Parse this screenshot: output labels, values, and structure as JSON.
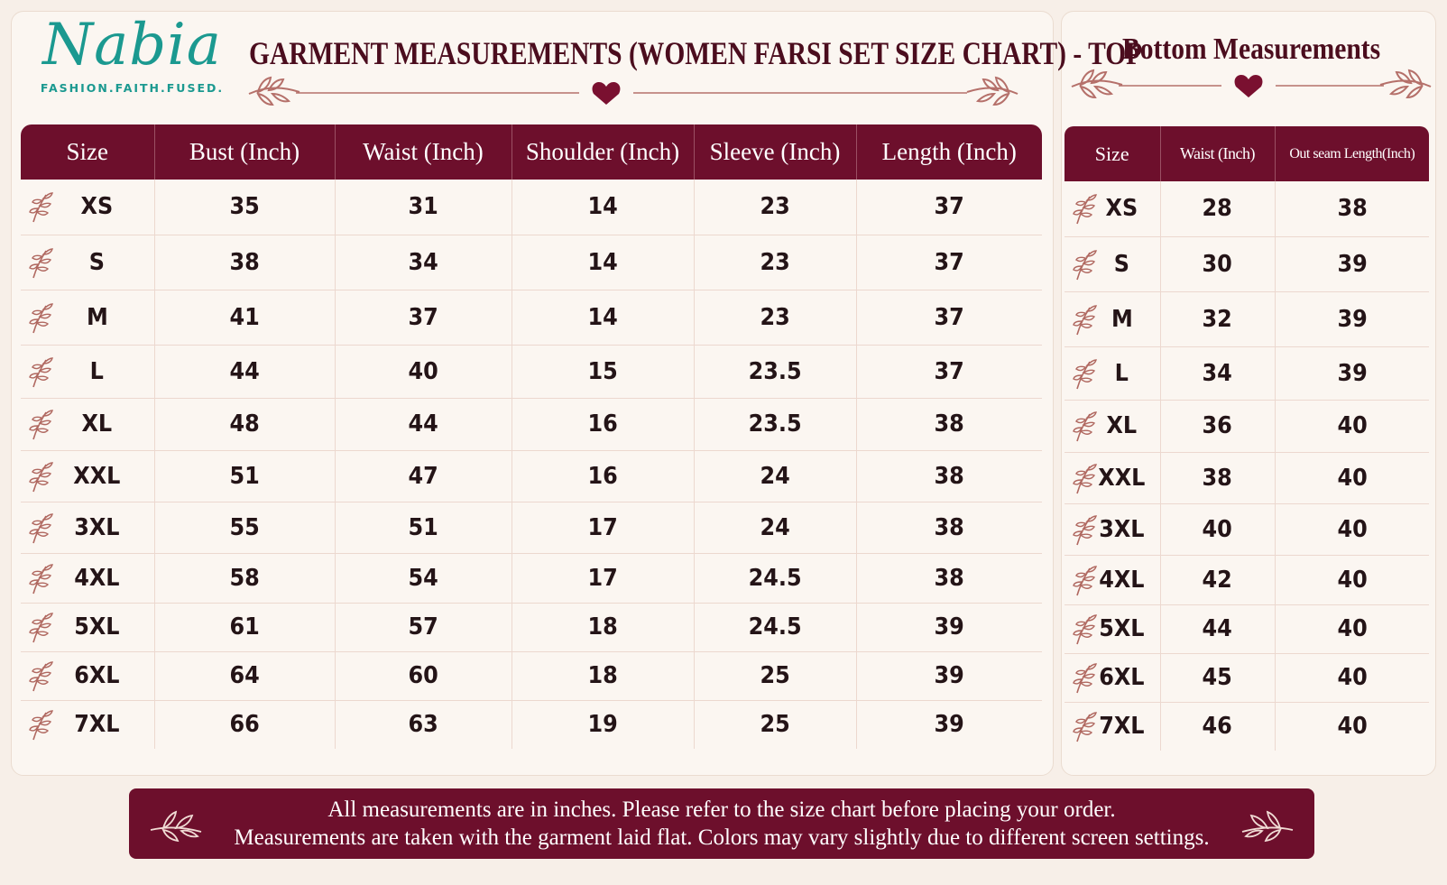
{
  "brand": {
    "name": "Nabia",
    "tagline": "FASHION.FAITH.FUSED.",
    "colors": {
      "teal": "#1b9990",
      "maroon": "#6d0f2c",
      "title": "#4b0d1e"
    }
  },
  "top_chart": {
    "title": "GARMENT MEASUREMENTS (WOMEN FARSI SET SIZE CHART) - TOP",
    "headers": [
      "Size",
      "Bust (Inch)",
      "Waist (Inch)",
      "Shoulder (Inch)",
      "Sleeve (Inch)",
      "Length (Inch)"
    ],
    "rows": [
      [
        "XS",
        "35",
        "31",
        "14",
        "23",
        "37"
      ],
      [
        "S",
        "38",
        "34",
        "14",
        "23",
        "37"
      ],
      [
        "M",
        "41",
        "37",
        "14",
        "23",
        "37"
      ],
      [
        "L",
        "44",
        "40",
        "15",
        "23.5",
        "37"
      ],
      [
        "XL",
        "48",
        "44",
        "16",
        "23.5",
        "38"
      ],
      [
        "XXL",
        "51",
        "47",
        "16",
        "24",
        "38"
      ],
      [
        "3XL",
        "55",
        "51",
        "17",
        "24",
        "38"
      ],
      [
        "4XL",
        "58",
        "54",
        "17",
        "24.5",
        "38"
      ],
      [
        "5XL",
        "61",
        "57",
        "18",
        "24.5",
        "39"
      ],
      [
        "6XL",
        "64",
        "60",
        "18",
        "25",
        "39"
      ],
      [
        "7XL",
        "66",
        "63",
        "19",
        "25",
        "39"
      ]
    ]
  },
  "bottom_chart": {
    "title": "Bottom Measurements",
    "headers": [
      "Size",
      "Waist (Inch)",
      "Out seam Length(Inch)"
    ],
    "rows": [
      [
        "XS",
        "28",
        "38"
      ],
      [
        "S",
        "30",
        "39"
      ],
      [
        "M",
        "32",
        "39"
      ],
      [
        "L",
        "34",
        "39"
      ],
      [
        "XL",
        "36",
        "40"
      ],
      [
        "XXL",
        "38",
        "40"
      ],
      [
        "3XL",
        "40",
        "40"
      ],
      [
        "4XL",
        "42",
        "40"
      ],
      [
        "5XL",
        "44",
        "40"
      ],
      [
        "6XL",
        "45",
        "40"
      ],
      [
        "7XL",
        "46",
        "40"
      ]
    ]
  },
  "footer": {
    "line1": "All measurements are in inches. Please refer to the size chart before placing your order.",
    "line2": "Measurements are taken with the garment laid flat. Colors may vary slightly due to different screen settings."
  },
  "icons": [
    "leaf-sprig-icon",
    "heart-icon",
    "floral-branch-icon"
  ]
}
